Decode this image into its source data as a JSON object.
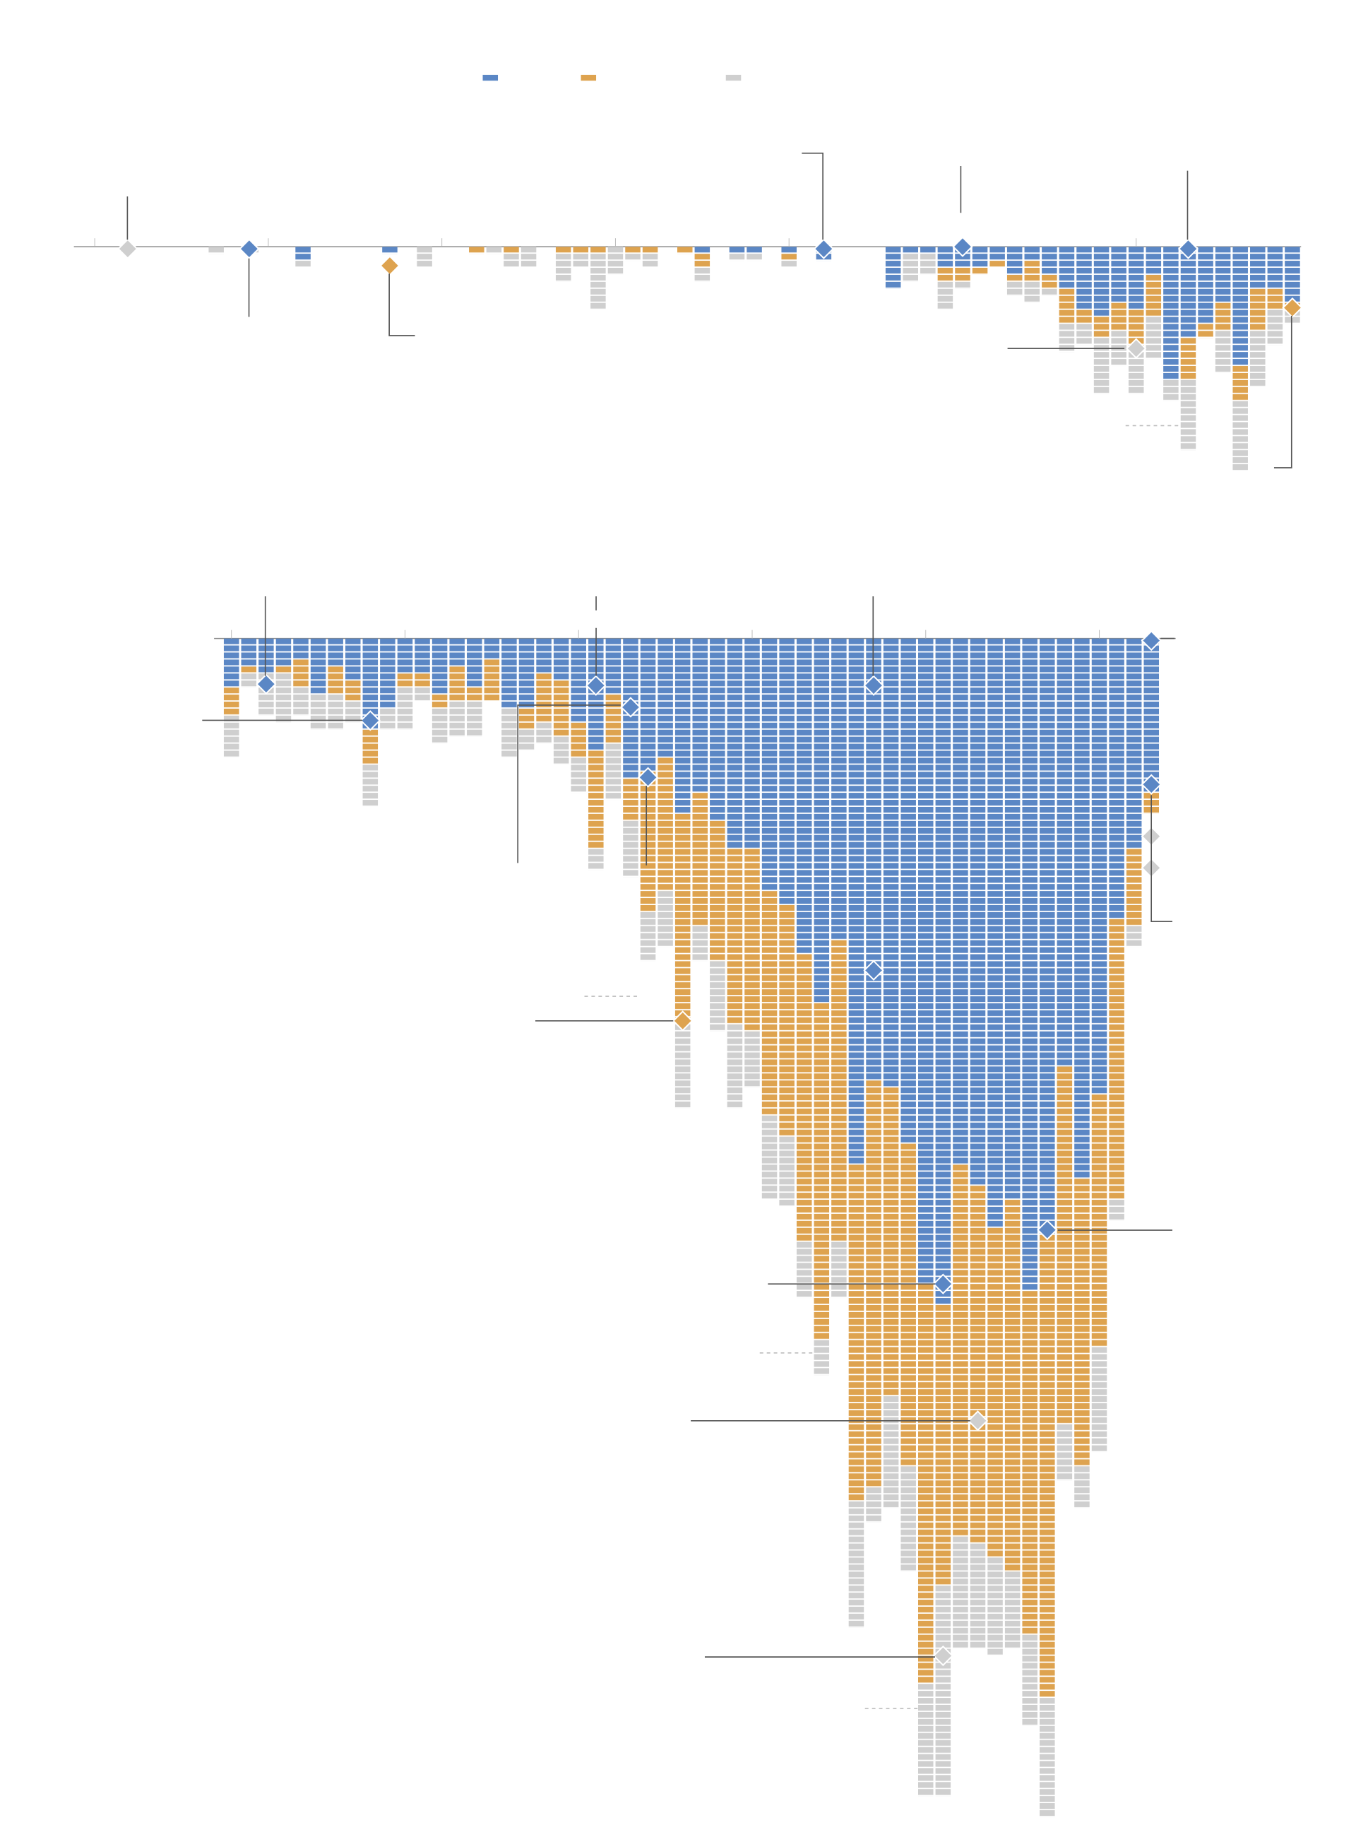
{
  "chart_data": [
    {
      "type": "waffle-column",
      "xlim": [
        -8.2,
        62.5
      ],
      "xticks": [
        -7,
        3,
        13,
        23,
        33,
        43,
        53
      ],
      "ylim": [
        0,
        30
      ],
      "series": [
        {
          "color": "#5b87c5",
          "values": [
            0,
            0,
            0,
            0,
            0,
            2,
            0,
            0,
            0,
            0,
            1,
            0,
            0,
            0,
            0,
            0,
            0,
            0,
            0,
            0,
            0,
            0,
            0,
            0,
            0,
            0,
            0,
            0,
            1,
            0,
            1,
            1,
            0,
            1,
            0,
            2,
            0,
            0,
            0,
            6,
            1,
            1,
            3,
            3,
            3,
            2,
            4,
            2,
            4,
            6,
            9,
            10,
            8,
            9,
            4,
            19,
            13,
            11,
            8,
            17,
            6,
            6,
            8
          ]
        },
        {
          "color": "#dea34f",
          "values": [
            0,
            0,
            0,
            0,
            0,
            0,
            0,
            0,
            0,
            0,
            0,
            0,
            0,
            0,
            0,
            1,
            0,
            1,
            0,
            0,
            1,
            1,
            1,
            0,
            1,
            1,
            0,
            1,
            2,
            0,
            0,
            0,
            0,
            1,
            0,
            0,
            0,
            0,
            0,
            0,
            0,
            0,
            2,
            2,
            1,
            1,
            1,
            3,
            2,
            5,
            2,
            3,
            4,
            6,
            6,
            0,
            6,
            2,
            4,
            5,
            6,
            3,
            1
          ]
        },
        {
          "color": "#cfcfcf",
          "values": [
            1,
            0,
            1,
            0,
            0,
            1,
            0,
            0,
            0,
            0,
            0,
            0,
            3,
            0,
            0,
            0,
            1,
            2,
            3,
            0,
            4,
            2,
            8,
            4,
            1,
            2,
            0,
            0,
            2,
            0,
            1,
            1,
            0,
            1,
            0,
            0,
            0,
            0,
            0,
            0,
            4,
            3,
            4,
            1,
            0,
            0,
            2,
            3,
            1,
            4,
            3,
            8,
            5,
            6,
            6,
            3,
            10,
            0,
            6,
            10,
            8,
            5,
            2
          ]
        }
      ],
      "markers": [
        {
          "x": -5.1,
          "value": 0.3,
          "color": "#cfcfcf"
        },
        {
          "x": 1.9,
          "value": 0.3,
          "color": "#5b87c5"
        },
        {
          "x": 10,
          "value": 2.7,
          "color": "#dea34f"
        },
        {
          "x": 35,
          "value": 0.3,
          "color": "#5b87c5"
        },
        {
          "x": 43,
          "value": 0,
          "color": "#5b87c5"
        },
        {
          "x": 56,
          "value": 0.3,
          "color": "#5b87c5"
        },
        {
          "x": 53,
          "value": 14.5,
          "color": "#cfcfcf"
        },
        {
          "x": 62,
          "value": 8.7,
          "color": "#dea34f"
        }
      ]
    },
    {
      "type": "waffle-column",
      "xlim": [
        -1,
        54.4
      ],
      "xticks": [
        0,
        10,
        20,
        30,
        40,
        50
      ],
      "ylim": [
        0,
        168
      ],
      "series": [
        {
          "color": "#5b87c5",
          "values": [
            7,
            4,
            5,
            4,
            3,
            8,
            4,
            6,
            13,
            10,
            5,
            5,
            8,
            4,
            7,
            3,
            10,
            10,
            5,
            6,
            12,
            16,
            8,
            20,
            19,
            17,
            25,
            22,
            26,
            30,
            30,
            36,
            38,
            45,
            52,
            43,
            75,
            63,
            64,
            72,
            92,
            95,
            75,
            78,
            84,
            80,
            93,
            85,
            61,
            77,
            65,
            40,
            30,
            22
          ]
        },
        {
          "color": "#dea34f",
          "values": [
            4,
            1,
            0,
            1,
            4,
            0,
            4,
            3,
            5,
            0,
            2,
            2,
            2,
            5,
            2,
            6,
            0,
            3,
            7,
            8,
            5,
            14,
            7,
            6,
            20,
            19,
            30,
            19,
            20,
            25,
            26,
            32,
            33,
            41,
            48,
            43,
            48,
            58,
            44,
            46,
            57,
            40,
            53,
            51,
            47,
            53,
            49,
            66,
            51,
            41,
            36,
            40,
            11,
            3
          ]
        },
        {
          "color": "#cfcfcf",
          "values": [
            6,
            2,
            6,
            7,
            4,
            5,
            5,
            3,
            6,
            3,
            6,
            2,
            5,
            5,
            5,
            0,
            7,
            3,
            3,
            4,
            5,
            3,
            8,
            8,
            7,
            8,
            12,
            5,
            10,
            12,
            8,
            12,
            10,
            8,
            5,
            8,
            18,
            5,
            16,
            15,
            16,
            30,
            16,
            15,
            14,
            11,
            13,
            17,
            8,
            6,
            15,
            3,
            3,
            0
          ]
        }
      ],
      "markers": [
        {
          "x": 2,
          "value": 6.5,
          "color": "#5b87c5"
        },
        {
          "x": 8,
          "value": 11.7,
          "color": "#5b87c5"
        },
        {
          "x": 21,
          "value": 6.7,
          "color": "#5b87c5"
        },
        {
          "x": 23,
          "value": 9.8,
          "color": "#5b87c5"
        },
        {
          "x": 24,
          "value": 19.8,
          "color": "#5b87c5"
        },
        {
          "x": 37,
          "value": 6.7,
          "color": "#5b87c5"
        },
        {
          "x": 26,
          "value": 54.5,
          "color": "#dea34f"
        },
        {
          "x": 37,
          "value": 47.3,
          "color": "#5b87c5"
        },
        {
          "x": 41,
          "value": 92,
          "color": "#5b87c5"
        },
        {
          "x": 47,
          "value": 84.3,
          "color": "#5b87c5"
        },
        {
          "x": 43,
          "value": 111.5,
          "color": "#cfcfcf"
        },
        {
          "x": 41,
          "value": 145,
          "color": "#cfcfcf"
        },
        {
          "x": 53,
          "value": 0.3,
          "color": "#5b87c5"
        },
        {
          "x": 53,
          "value": 20.8,
          "color": "#5b87c5"
        },
        {
          "x": 53,
          "value": 28.2,
          "color": "#cfcfcf"
        },
        {
          "x": 53,
          "value": 32.7,
          "color": "#cfcfcf"
        }
      ]
    }
  ]
}
